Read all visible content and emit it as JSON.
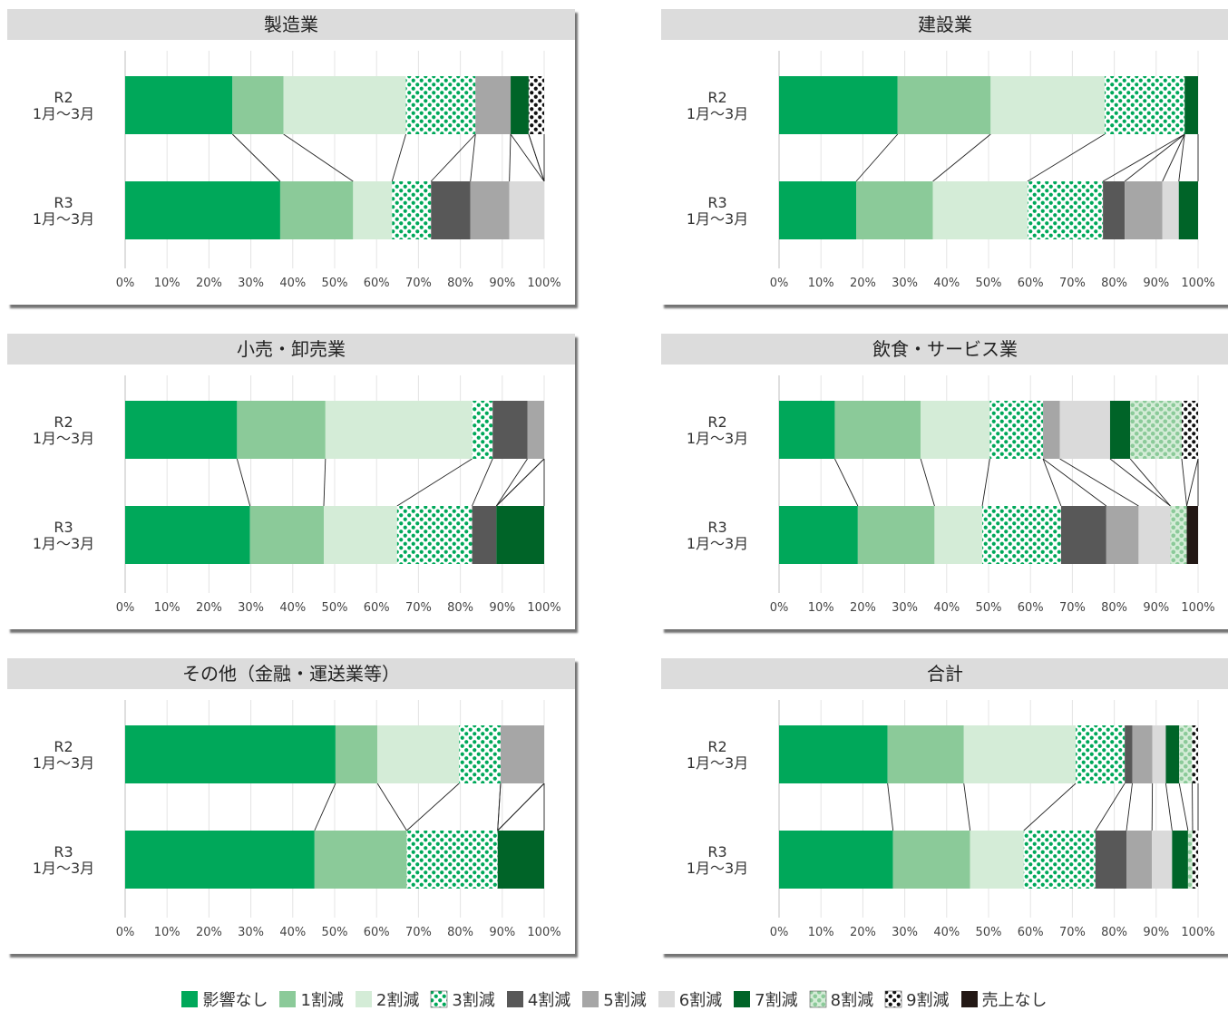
{
  "colors": [
    "#00a85a",
    "#8bca99",
    "#d4ecd7",
    "dots-green",
    "#585858",
    "#a6a6a6",
    "#dadada",
    "#006428",
    "dots-lightgreen",
    "dots-black",
    "#231815"
  ],
  "chart_data": [
    {
      "type": "bar",
      "stacked": "100%",
      "orientation": "horizontal",
      "title": "製造業",
      "categories": [
        "R2 1月〜3月",
        "R3 1月〜3月"
      ],
      "xlim": [
        0,
        100
      ],
      "grid": true,
      "series": [
        {
          "name": "影響なし",
          "values": [
            25.6,
            37
          ]
        },
        {
          "name": "1割減",
          "values": [
            12.2,
            17.4
          ]
        },
        {
          "name": "2割減",
          "values": [
            29.2,
            9.3
          ]
        },
        {
          "name": "3割減",
          "values": [
            16.6,
            9.3
          ]
        },
        {
          "name": "4割減",
          "values": [
            0,
            9.4
          ]
        },
        {
          "name": "5割減",
          "values": [
            8.4,
            9.3
          ]
        },
        {
          "name": "6割減",
          "values": [
            0,
            8.3
          ]
        },
        {
          "name": "7割減",
          "values": [
            4.3,
            0
          ]
        },
        {
          "name": "8割減",
          "values": [
            0,
            0
          ]
        },
        {
          "name": "9割減",
          "values": [
            3.7,
            0
          ]
        },
        {
          "name": "売上なし",
          "values": [
            0,
            0
          ]
        }
      ]
    },
    {
      "type": "bar",
      "stacked": "100%",
      "orientation": "horizontal",
      "title": "建設業",
      "categories": [
        "R2 1月〜3月",
        "R3 1月〜3月"
      ],
      "xlim": [
        0,
        100
      ],
      "grid": true,
      "series": [
        {
          "name": "影響なし",
          "values": [
            28.3,
            18.4
          ]
        },
        {
          "name": "1割減",
          "values": [
            22.2,
            18.3
          ]
        },
        {
          "name": "2割減",
          "values": [
            27.2,
            22.6
          ]
        },
        {
          "name": "3割減",
          "values": [
            19.1,
            18
          ]
        },
        {
          "name": "4割減",
          "values": [
            0,
            5.2
          ]
        },
        {
          "name": "5割減",
          "values": [
            0,
            9
          ]
        },
        {
          "name": "6割減",
          "values": [
            0,
            3.9
          ]
        },
        {
          "name": "7割減",
          "values": [
            3.2,
            4.6
          ]
        },
        {
          "name": "8割減",
          "values": [
            0,
            0
          ]
        },
        {
          "name": "9割減",
          "values": [
            0,
            0
          ]
        },
        {
          "name": "売上なし",
          "values": [
            0,
            0
          ]
        }
      ]
    },
    {
      "type": "bar",
      "stacked": "100%",
      "orientation": "horizontal",
      "title": "小売・卸売業",
      "categories": [
        "R2 1月〜3月",
        "R3 1月〜3月"
      ],
      "xlim": [
        0,
        100
      ],
      "grid": true,
      "series": [
        {
          "name": "影響なし",
          "values": [
            26.7,
            29.8
          ]
        },
        {
          "name": "1割減",
          "values": [
            21.1,
            17.6
          ]
        },
        {
          "name": "2割減",
          "values": [
            35,
            17.5
          ]
        },
        {
          "name": "3割減",
          "values": [
            4.9,
            17.9
          ]
        },
        {
          "name": "4割減",
          "values": [
            8.3,
            5.8
          ]
        },
        {
          "name": "5割減",
          "values": [
            4,
            0
          ]
        },
        {
          "name": "6割減",
          "values": [
            0,
            0
          ]
        },
        {
          "name": "7割減",
          "values": [
            0,
            11.4
          ]
        },
        {
          "name": "8割減",
          "values": [
            0,
            0
          ]
        },
        {
          "name": "9割減",
          "values": [
            0,
            0
          ]
        },
        {
          "name": "売上なし",
          "values": [
            0,
            0
          ]
        }
      ]
    },
    {
      "type": "bar",
      "stacked": "100%",
      "orientation": "horizontal",
      "title": "飲食・サービス業",
      "categories": [
        "R2 1月〜3月",
        "R3 1月〜3月"
      ],
      "xlim": [
        0,
        100
      ],
      "grid": true,
      "series": [
        {
          "name": "影響なし",
          "values": [
            13.3,
            18.8
          ]
        },
        {
          "name": "1割減",
          "values": [
            20.5,
            18.3
          ]
        },
        {
          "name": "2割減",
          "values": [
            16.5,
            11.4
          ]
        },
        {
          "name": "3割減",
          "values": [
            12.7,
            18.8
          ]
        },
        {
          "name": "4割減",
          "values": [
            0,
            10.8
          ]
        },
        {
          "name": "5割減",
          "values": [
            4,
            7.7
          ]
        },
        {
          "name": "6割減",
          "values": [
            12,
            7.6
          ]
        },
        {
          "name": "7割減",
          "values": [
            4.8,
            0
          ]
        },
        {
          "name": "8割減",
          "values": [
            12.3,
            3.9
          ]
        },
        {
          "name": "9割減",
          "values": [
            3.9,
            0
          ]
        },
        {
          "name": "売上なし",
          "values": [
            0,
            2.7
          ]
        }
      ]
    },
    {
      "type": "bar",
      "stacked": "100%",
      "orientation": "horizontal",
      "title": "その他（金融・運送業等）",
      "categories": [
        "R2 1月〜3月",
        "R3 1月〜3月"
      ],
      "xlim": [
        0,
        100
      ],
      "grid": true,
      "series": [
        {
          "name": "影響なし",
          "values": [
            50.2,
            45.2
          ]
        },
        {
          "name": "1割減",
          "values": [
            10,
            22
          ]
        },
        {
          "name": "2割減",
          "values": [
            19.5,
            0
          ]
        },
        {
          "name": "3割減",
          "values": [
            9.9,
            21.7
          ]
        },
        {
          "name": "4割減",
          "values": [
            0,
            0
          ]
        },
        {
          "name": "5割減",
          "values": [
            10.4,
            0
          ]
        },
        {
          "name": "6割減",
          "values": [
            0,
            0
          ]
        },
        {
          "name": "7割減",
          "values": [
            0,
            11.1
          ]
        },
        {
          "name": "8割減",
          "values": [
            0,
            0
          ]
        },
        {
          "name": "9割減",
          "values": [
            0,
            0
          ]
        },
        {
          "name": "売上なし",
          "values": [
            0,
            0
          ]
        }
      ]
    },
    {
      "type": "bar",
      "stacked": "100%",
      "orientation": "horizontal",
      "title": "合計",
      "categories": [
        "R2 1月〜3月",
        "R3 1月〜3月"
      ],
      "xlim": [
        0,
        100
      ],
      "grid": true,
      "series": [
        {
          "name": "影響なし",
          "values": [
            25.9,
            27.2
          ]
        },
        {
          "name": "1割減",
          "values": [
            18.2,
            18.4
          ]
        },
        {
          "name": "2割減",
          "values": [
            26.7,
            12.8
          ]
        },
        {
          "name": "3割減",
          "values": [
            11.7,
            17.1
          ]
        },
        {
          "name": "4割減",
          "values": [
            1.8,
            7.4
          ]
        },
        {
          "name": "5割減",
          "values": [
            4.8,
            6.1
          ]
        },
        {
          "name": "6割減",
          "values": [
            3.2,
            4.8
          ]
        },
        {
          "name": "7割減",
          "values": [
            3.2,
            3.8
          ]
        },
        {
          "name": "8割減",
          "values": [
            3.1,
            1.1
          ]
        },
        {
          "name": "9割減",
          "values": [
            1.4,
            1.3
          ]
        },
        {
          "name": "売上なし",
          "values": [
            0,
            0
          ]
        }
      ]
    }
  ],
  "axis": {
    "xticks": [
      "0%",
      "10%",
      "20%",
      "30%",
      "40%",
      "50%",
      "60%",
      "70%",
      "80%",
      "90%",
      "100%"
    ],
    "row_labels": [
      [
        "R2",
        "1月〜3月"
      ],
      [
        "R3",
        "1月〜3月"
      ]
    ]
  },
  "legend": {
    "placement": "bottom",
    "items": [
      "影響なし",
      "1割減",
      "2割減",
      "3割減",
      "4割減",
      "5割減",
      "6割減",
      "7割減",
      "8割減",
      "9割減",
      "売上なし"
    ]
  }
}
